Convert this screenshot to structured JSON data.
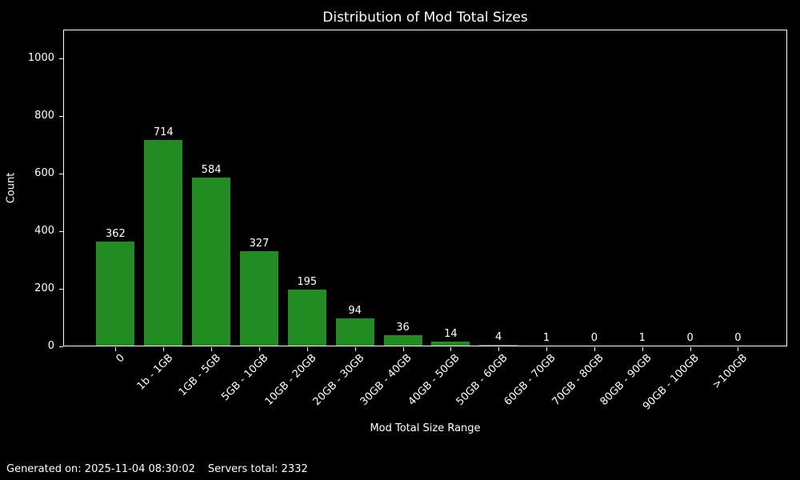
{
  "title": "Distribution of Mod Total Sizes",
  "footer": {
    "generated_label": "Generated on: 2025-11-04 08:30:02",
    "servers_total_label": "Servers total: 2332"
  },
  "chart_data": {
    "type": "bar",
    "title": "Distribution of Mod Total Sizes",
    "xlabel": "Mod Total Size Range",
    "ylabel": "Count",
    "categories": [
      "0",
      "1b - 1GB",
      "1GB - 5GB",
      "5GB - 10GB",
      "10GB - 20GB",
      "20GB - 30GB",
      "30GB - 40GB",
      "40GB - 50GB",
      "50GB - 60GB",
      "60GB - 70GB",
      "70GB - 80GB",
      "80GB - 90GB",
      "90GB - 100GB",
      ">100GB"
    ],
    "values": [
      362,
      714,
      584,
      327,
      195,
      94,
      36,
      14,
      4,
      1,
      0,
      1,
      0,
      0
    ],
    "bar_value_labels": [
      "362",
      "714",
      "584",
      "327",
      "195",
      "94",
      "36",
      "14",
      "4",
      "1",
      "0",
      "1",
      "0",
      "0"
    ],
    "yticks": [
      0,
      200,
      400,
      600,
      800,
      1000
    ],
    "ylim": [
      0,
      1100
    ],
    "xtick_rotation_deg": 45,
    "grid": false,
    "legend": null,
    "bar_color": "#228B22",
    "background_color": "#000000",
    "text_color": "#ffffff",
    "axis_color": "#ffffff"
  }
}
